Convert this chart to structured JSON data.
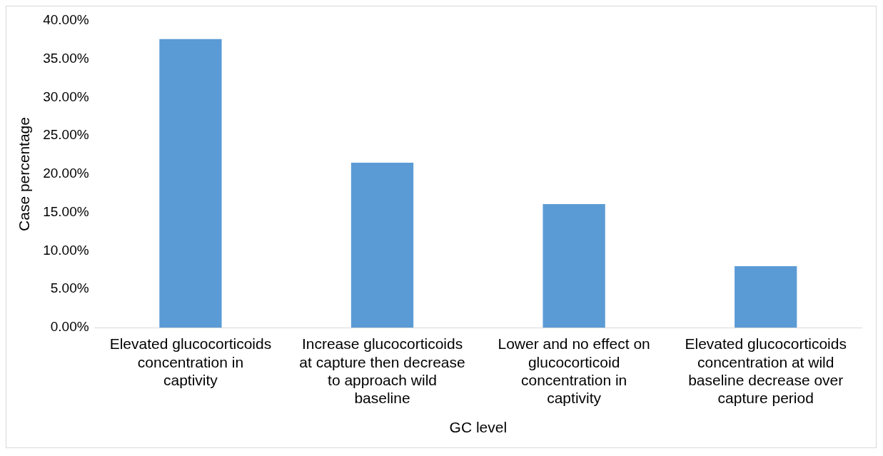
{
  "chart_data": {
    "type": "bar",
    "xlabel": "GC level",
    "ylabel": "Case percentage",
    "categories": [
      "Elevated glucocorticoids concentration in captivity",
      "Increase glucocorticoids at capture then decrease to approach wild baseline",
      "Lower and no effect on glucocorticoid concentration in captivity",
      "Elevated glucocorticoids concentration at wild baseline decrease over capture period"
    ],
    "values": [
      37.6,
      21.5,
      16.1,
      8.0
    ],
    "color": "#5b9bd5",
    "ylim": [
      0,
      40
    ],
    "yticks": [
      {
        "value": 0,
        "label": "0.00%"
      },
      {
        "value": 5,
        "label": "5.00%"
      },
      {
        "value": 10,
        "label": "10.00%"
      },
      {
        "value": 15,
        "label": "15.00%"
      },
      {
        "value": 20,
        "label": "20.00%"
      },
      {
        "value": 25,
        "label": "25.00%"
      },
      {
        "value": 30,
        "label": "30.00%"
      },
      {
        "value": 35,
        "label": "35.00%"
      },
      {
        "value": 40,
        "label": "40.00%"
      }
    ],
    "grid": false,
    "legend": false
  }
}
